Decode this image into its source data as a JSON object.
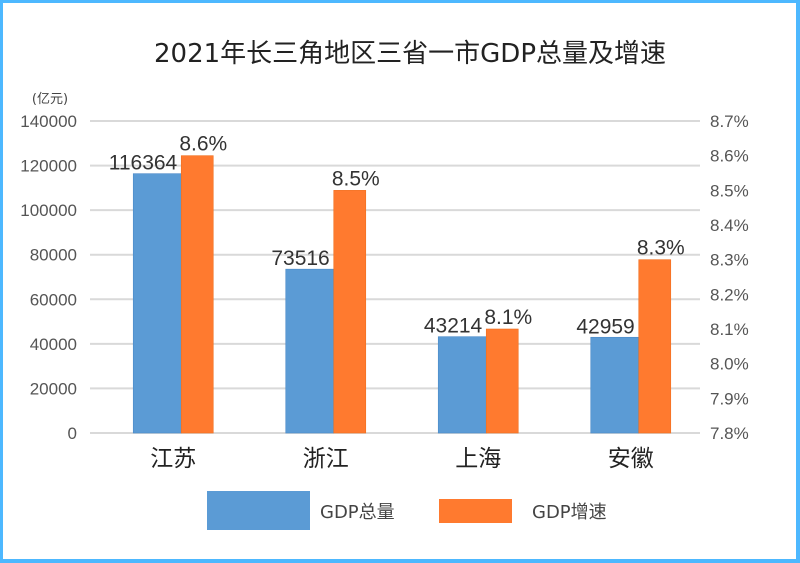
{
  "chart_data": {
    "type": "bar",
    "title": "2021年长三角地区三省一市GDP总量及增速",
    "y_left_unit": "(亿元)",
    "categories": [
      "江苏",
      "浙江",
      "上海",
      "安徽"
    ],
    "series": [
      {
        "name": "GDP总量",
        "axis": "left",
        "color": "#5b9bd5",
        "values": [
          116364,
          73516,
          43214,
          42959
        ],
        "labels": [
          "116364",
          "73516",
          "43214",
          "42959"
        ]
      },
      {
        "name": "GDP增速",
        "axis": "right",
        "color": "#ff7a2f",
        "values": [
          8.6,
          8.5,
          8.1,
          8.3
        ],
        "labels": [
          "8.6%",
          "8.5%",
          "8.1%",
          "8.3%"
        ]
      }
    ],
    "y_left": {
      "ylim": [
        0,
        140000
      ],
      "ticks": [
        "0",
        "20000",
        "40000",
        "60000",
        "80000",
        "100000",
        "120000",
        "140000"
      ],
      "tick_values": [
        0,
        20000,
        40000,
        60000,
        80000,
        100000,
        120000,
        140000
      ]
    },
    "y_right": {
      "ylim": [
        7.8,
        8.7
      ],
      "ticks": [
        "7.8%",
        "7.9%",
        "8.0%",
        "8.1%",
        "8.2%",
        "8.3%",
        "8.4%",
        "8.5%",
        "8.6%",
        "8.7%"
      ],
      "tick_values": [
        7.8,
        7.9,
        8.0,
        8.1,
        8.2,
        8.3,
        8.4,
        8.5,
        8.6,
        8.7
      ]
    },
    "grid": true,
    "legend_position": "bottom"
  },
  "colors": {
    "frame": "#4db8ff",
    "grid": "#d9d9d9"
  }
}
